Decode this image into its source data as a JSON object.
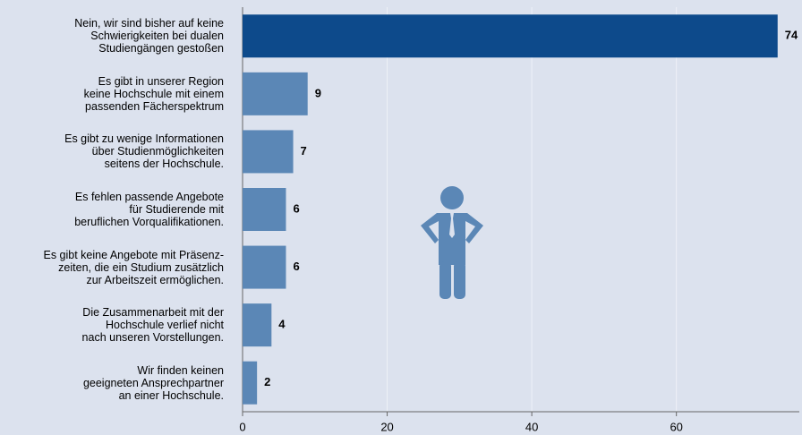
{
  "chart_data": {
    "type": "barh",
    "categories": [
      "Nein, wir sind bisher auf keine\nSchwierigkeiten bei dualen\nStudiengängen gestoßen",
      "Es gibt in unserer Region\nkeine Hochschule mit einem\npassenden Fächerspektrum",
      "Es gibt zu wenige Informationen\nüber Studienmöglichkeiten\nseitens der Hochschule.",
      "Es fehlen passende Angebote\nfür Studierende mit\nberuflichen Vorqualifikationen.",
      "Es gibt keine Angebote mit Präsenz-\nzeiten, die ein Studium zusätzlich\nzur Arbeitszeit ermöglichen.",
      "Die Zusammenarbeit mit der\nHochschule verlief nicht\nnach unseren Vorstellungen.",
      "Wir finden keinen\ngeeigneten Ansprechpartner\nan einer Hochschule."
    ],
    "values": [
      74,
      9,
      7,
      6,
      6,
      4,
      2
    ],
    "colors": [
      "#0d4a8b",
      "#5b87b6",
      "#5b87b6",
      "#5b87b6",
      "#5b87b6",
      "#5b87b6",
      "#5b87b6"
    ],
    "xlim": [
      0,
      77
    ],
    "xticks": [
      0,
      20,
      40,
      60
    ],
    "grid": true
  }
}
